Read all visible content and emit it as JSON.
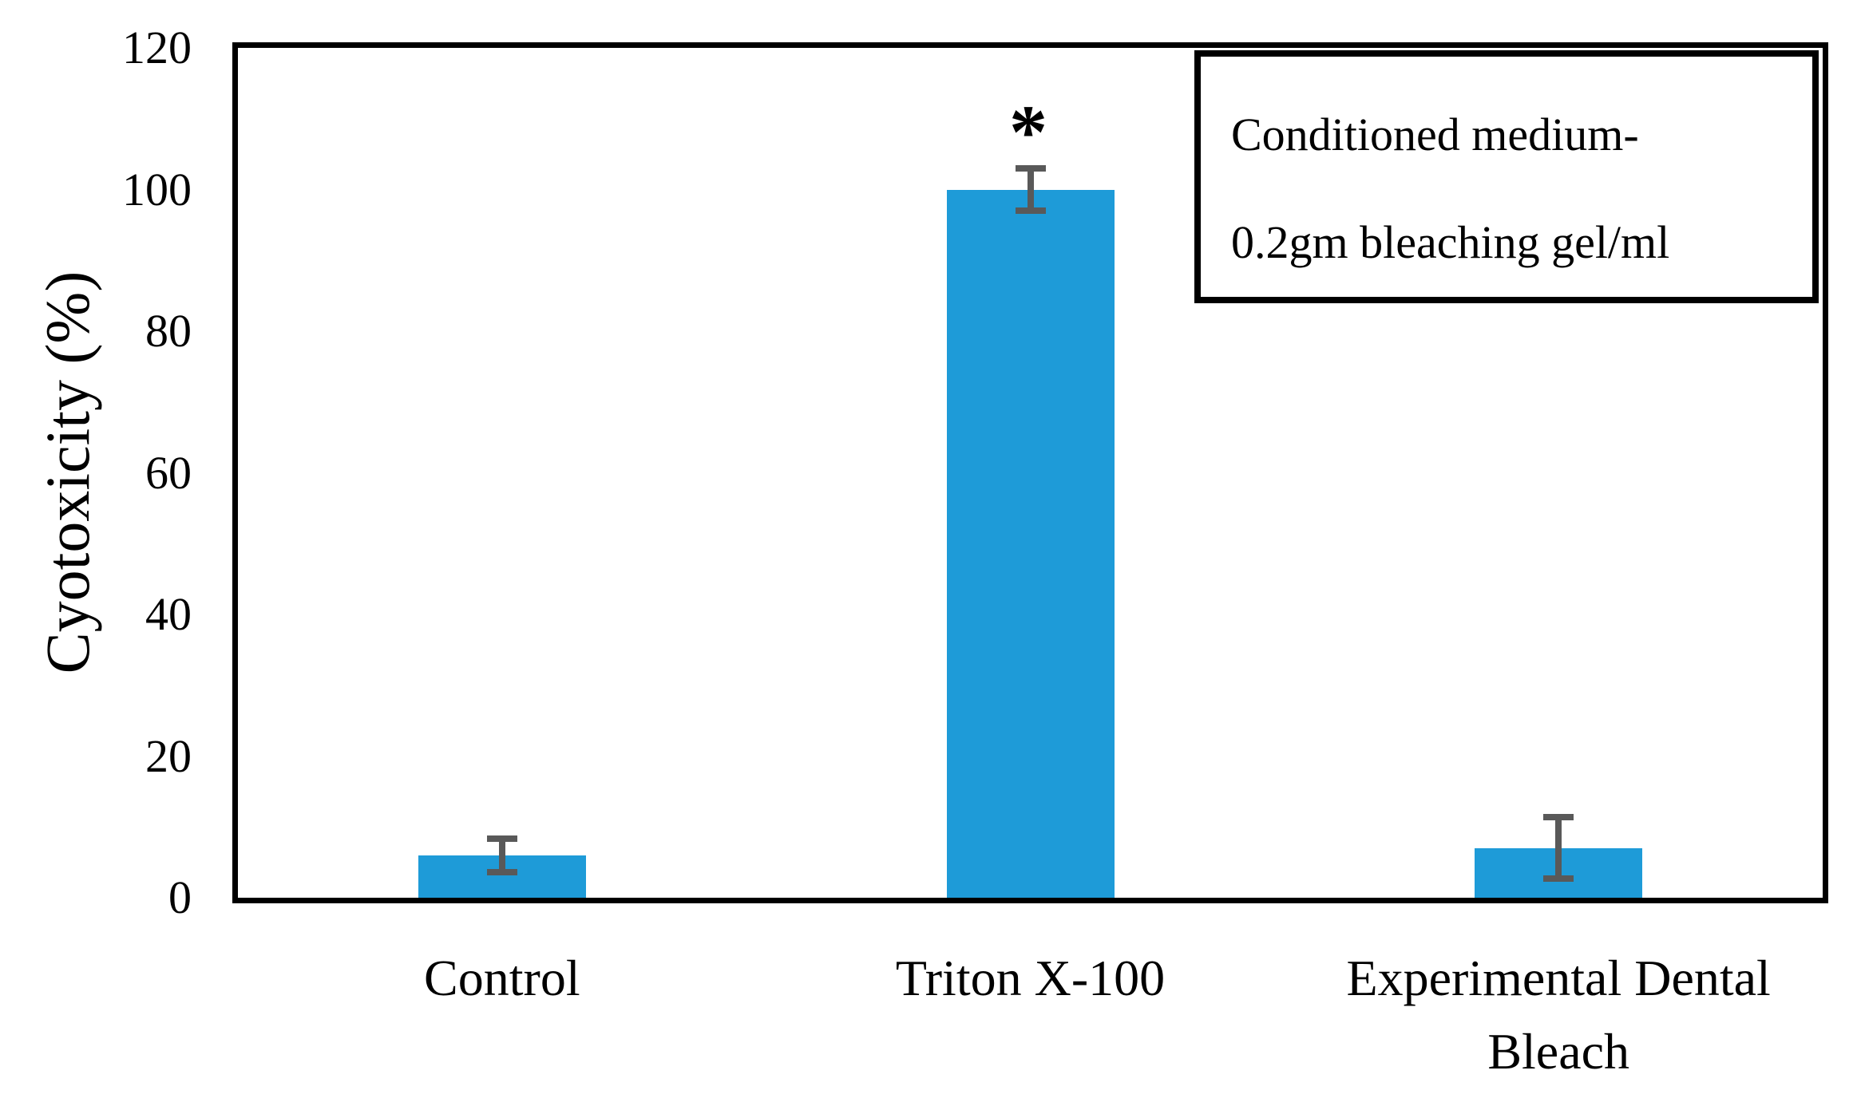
{
  "chart_data": {
    "type": "bar",
    "title": "",
    "xlabel": "",
    "ylabel": "Cyotoxicity (%)",
    "ylim": [
      0,
      120
    ],
    "yticks": [
      0,
      20,
      40,
      60,
      80,
      100,
      120
    ],
    "grid": false,
    "categories": [
      "Control",
      "Triton X-100",
      "Experimental Dental Bleach"
    ],
    "series": [
      {
        "name": "Conditioned medium- 0.2gm bleaching gel/ml",
        "values": [
          6,
          100,
          7
        ],
        "errors": [
          2.8,
          3.4,
          4.8
        ]
      }
    ],
    "annotations": [
      {
        "category": "Triton X-100",
        "text": "*",
        "meaning": "significance-marker"
      }
    ],
    "legend": {
      "position": "top-right",
      "border": true,
      "lines": [
        "Conditioned   medium-",
        "0.2gm bleaching gel/ml"
      ]
    },
    "colors": {
      "bar": "#1E9BD8",
      "error_bar": "#595959",
      "axis": "#000000",
      "background": "#ffffff"
    }
  }
}
